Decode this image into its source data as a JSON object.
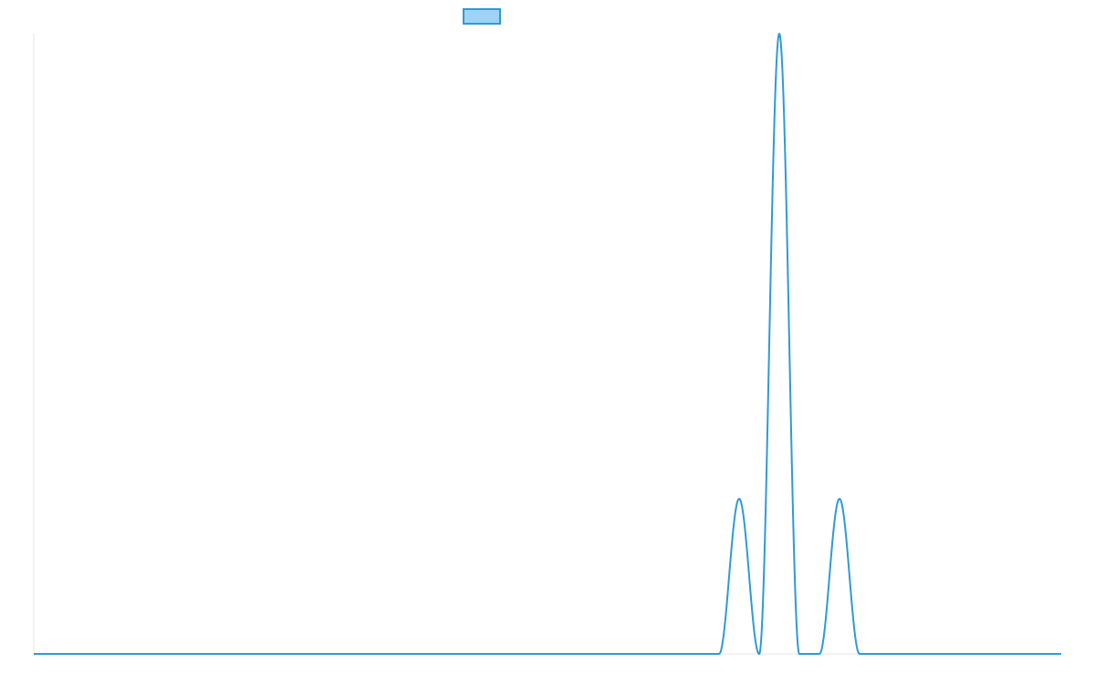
{
  "chart_data": {
    "type": "line",
    "title": "",
    "xlabel": "",
    "ylabel": "",
    "legend": {
      "position": "top-center",
      "entries": [
        {
          "label": "",
          "swatch_fill": "#9fd3f3",
          "swatch_stroke": "#2d9ad8"
        }
      ]
    },
    "grid": false,
    "show_tick_labels": false,
    "xlim": [
      0,
      1024
    ],
    "ylim": [
      0,
      1
    ],
    "baseline": 0,
    "series": [
      {
        "color": "#2d9ad8",
        "line_width": 2,
        "peaks": [
          {
            "start": 683,
            "end": 723,
            "height": 0.25
          },
          {
            "start": 723,
            "end": 763,
            "height": 1.0
          },
          {
            "start": 783,
            "end": 823,
            "height": 0.25
          }
        ]
      }
    ]
  }
}
